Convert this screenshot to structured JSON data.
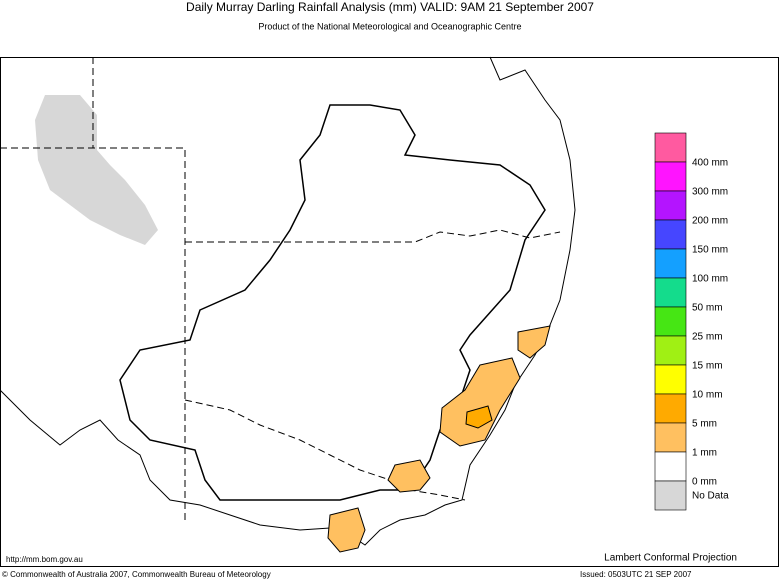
{
  "header": {
    "title": "Daily Murray Darling Rainfall Analysis (mm)  VALID: 9AM 21 September 2007",
    "subtitle": "Product of the National Meteorological and Oceanographic Centre"
  },
  "legend": {
    "colors": [
      "#ff5aa0",
      "#ff14ff",
      "#b414ff",
      "#4646ff",
      "#14a0ff",
      "#14dc8c",
      "#46e614",
      "#a0f014",
      "#ffff00",
      "#ffaa00",
      "#ffc060",
      "#ffffff",
      "#d7d7d7"
    ],
    "labels": [
      "400 mm",
      "300 mm",
      "200 mm",
      "150 mm",
      "100 mm",
      "50 mm",
      "25 mm",
      "15 mm",
      "10 mm",
      "5 mm",
      "1 mm",
      "0 mm",
      "No Data"
    ]
  },
  "footer": {
    "url": "http://mm.bom.gov.au",
    "projection": "Lambert Conformal Projection",
    "copyright": "© Commonwealth of Australia 2007, Commonwealth Bureau of Meteorology",
    "issued": "Issued: 0503UTC 21 SEP 2007"
  }
}
